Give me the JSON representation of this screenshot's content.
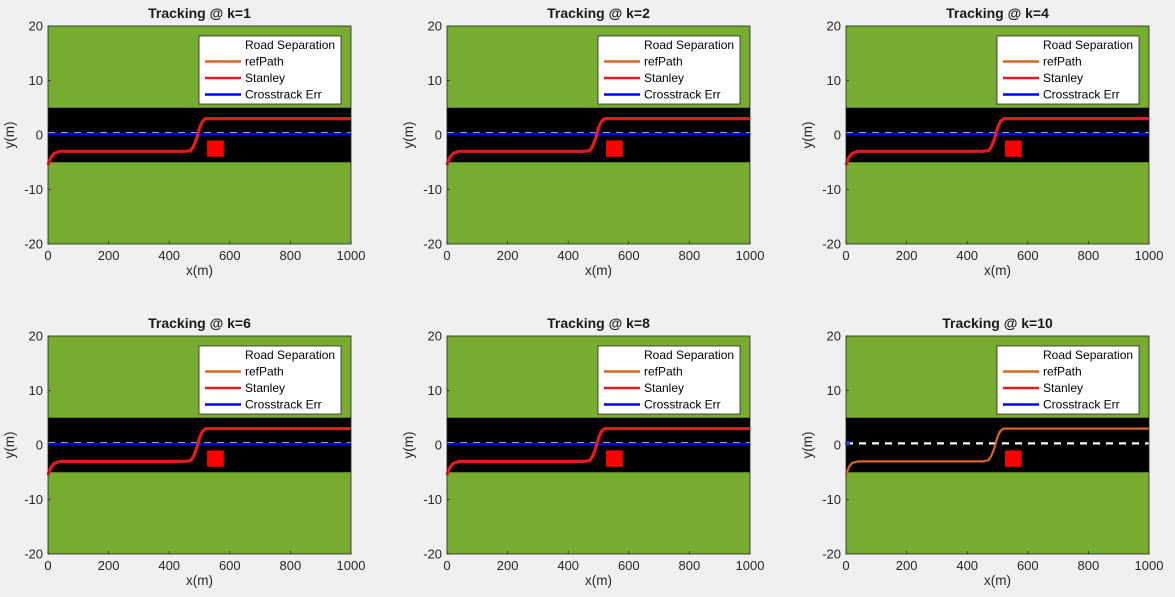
{
  "chart_data": {
    "type": "line",
    "layout": "2x3 subplots",
    "shared": {
      "xlabel": "x(m)",
      "ylabel": "y(m)",
      "xlim": [
        0,
        1000
      ],
      "ylim": [
        -20,
        20
      ],
      "xticks": [
        0,
        200,
        400,
        600,
        800,
        1000
      ],
      "yticks": [
        20,
        10,
        0,
        -10,
        -20
      ],
      "legend_placement": "top-right",
      "legend": [
        {
          "name": "Road Separation",
          "color": "#ffffff",
          "style": "dashed"
        },
        {
          "name": "refPath",
          "color": "#d9661f"
        },
        {
          "name": "Stanley",
          "color": "#e41a1c"
        },
        {
          "name": "Crosstrack Err",
          "color": "#0000ff"
        }
      ],
      "colors": {
        "grass": "#77ac30",
        "road": "#000000",
        "obstacle": "#ff0000"
      },
      "road_band": {
        "y_min": -5,
        "y_max": 5
      },
      "obstacle": {
        "x_min": 525,
        "x_max": 580,
        "y_min": -4,
        "y_max": -1
      },
      "road_separation": {
        "y": 0.3,
        "x_min": 0,
        "x_max": 1000
      },
      "refPath": {
        "x": [
          0,
          10,
          20,
          40,
          60,
          100,
          450,
          470,
          480,
          490,
          500,
          510,
          520,
          540,
          600,
          1000
        ],
        "y": [
          -5.5,
          -4.0,
          -3.3,
          -3.0,
          -3.0,
          -3.0,
          -3.0,
          -2.8,
          -2.0,
          -0.5,
          1.5,
          2.6,
          3.0,
          3.0,
          3.0,
          3.0
        ]
      },
      "stanley_base": {
        "x": [
          0,
          10,
          20,
          40,
          60,
          100,
          450,
          470,
          480,
          490,
          500,
          510,
          520,
          540,
          600,
          1000
        ],
        "y": [
          -5.5,
          -4.1,
          -3.4,
          -3.0,
          -3.0,
          -3.0,
          -3.0,
          -2.9,
          -2.2,
          -0.7,
          1.3,
          2.5,
          3.0,
          3.0,
          3.0,
          3.0
        ]
      }
    },
    "subplots": [
      {
        "title": "Tracking @ k=1",
        "stanley": true,
        "crosstrack_y": 0.2
      },
      {
        "title": "Tracking @ k=2",
        "stanley": true,
        "crosstrack_y": 0.2
      },
      {
        "title": "Tracking @ k=4",
        "stanley": true,
        "crosstrack_y": 0.2
      },
      {
        "title": "Tracking @ k=6",
        "stanley": true,
        "crosstrack_y": 0.2
      },
      {
        "title": "Tracking @ k=8",
        "stanley": true,
        "crosstrack_y": 0.2
      },
      {
        "title": "Tracking @ k=10",
        "stanley": false,
        "crosstrack_y": null
      }
    ]
  }
}
